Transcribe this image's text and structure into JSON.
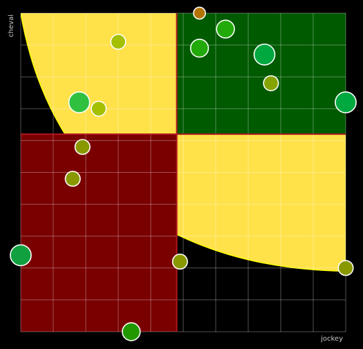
{
  "chart_data": {
    "type": "scatter",
    "xlabel": "jockey",
    "ylabel": "cheval",
    "xlim": [
      0,
      100
    ],
    "ylim": [
      0,
      100
    ],
    "grid": true,
    "grid_step": 10,
    "split": {
      "x": 48,
      "y": 62
    },
    "colors": {
      "background": "#000000",
      "grid": "#ffffff",
      "top_right_zone": "#005a00",
      "bottom_left_zone": "#7a0000",
      "curve_zone": "#ffe14a",
      "curve_edge": "#ffff00",
      "divider": "#b0181e"
    },
    "points": [
      {
        "x": 55,
        "y": 100,
        "size": 4,
        "color": "#b37400"
      },
      {
        "x": 63,
        "y": 95,
        "size": 6,
        "color": "#22aa0a"
      },
      {
        "x": 55,
        "y": 89,
        "size": 6,
        "color": "#22aa0a"
      },
      {
        "x": 75,
        "y": 87,
        "size": 7,
        "color": "#00a840"
      },
      {
        "x": 77,
        "y": 78,
        "size": 5,
        "color": "#86a400"
      },
      {
        "x": 100,
        "y": 72,
        "size": 7,
        "color": "#00a840"
      },
      {
        "x": 30,
        "y": 91,
        "size": 5,
        "color": "#a4c000"
      },
      {
        "x": 18,
        "y": 72,
        "size": 7,
        "color": "#30c040"
      },
      {
        "x": 24,
        "y": 70,
        "size": 5,
        "color": "#a4c000"
      },
      {
        "x": 19,
        "y": 58,
        "size": 5,
        "color": "#8a9800"
      },
      {
        "x": 16,
        "y": 48,
        "size": 5,
        "color": "#8a9800"
      },
      {
        "x": 0,
        "y": 24,
        "size": 7,
        "color": "#10a040"
      },
      {
        "x": 49,
        "y": 22,
        "size": 5,
        "color": "#8a9800"
      },
      {
        "x": 100,
        "y": 20,
        "size": 5,
        "color": "#8a9800"
      },
      {
        "x": 34,
        "y": 0,
        "size": 6,
        "color": "#229800"
      }
    ]
  }
}
